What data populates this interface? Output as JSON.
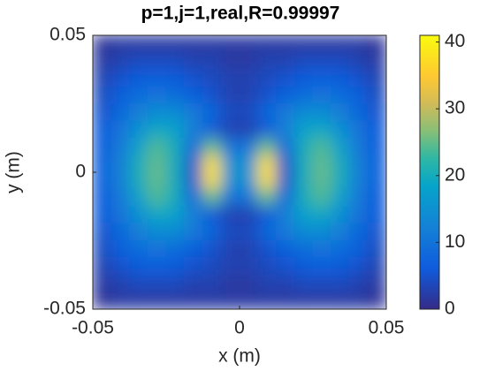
{
  "chart_data": {
    "type": "heatmap",
    "title": "p=1,j=1,real,R=0.99997",
    "x_label": "x (m)",
    "y_label": "y (m)",
    "xlim": [
      -0.05,
      0.05
    ],
    "ylim": [
      -0.05,
      0.05
    ],
    "xticks": [
      -0.05,
      0,
      0.05
    ],
    "yticks": [
      -0.05,
      0,
      0.05
    ],
    "colormap": "parula",
    "clim": [
      0,
      41
    ],
    "cticks": [
      0,
      10,
      20,
      30,
      40
    ],
    "z": [
      [
        1,
        2,
        2,
        2,
        2,
        2,
        2,
        2,
        2,
        2,
        2,
        2,
        2,
        2,
        2,
        1
      ],
      [
        2,
        3,
        4,
        4,
        4,
        3,
        3,
        2,
        2,
        3,
        3,
        4,
        4,
        4,
        3,
        2
      ],
      [
        3,
        5,
        6,
        7,
        6,
        5,
        4,
        3,
        3,
        4,
        5,
        6,
        7,
        6,
        5,
        3
      ],
      [
        4,
        7,
        9,
        10,
        9,
        7,
        5,
        3,
        3,
        5,
        7,
        9,
        10,
        9,
        7,
        4
      ],
      [
        5,
        8,
        12,
        14,
        14,
        11,
        8,
        4,
        4,
        8,
        11,
        14,
        14,
        12,
        8,
        5
      ],
      [
        6,
        10,
        15,
        19,
        18,
        12,
        6,
        3,
        3,
        6,
        12,
        18,
        19,
        15,
        10,
        6
      ],
      [
        6,
        11,
        18,
        24,
        20,
        8,
        25,
        10,
        10,
        25,
        8,
        20,
        24,
        18,
        11,
        6
      ],
      [
        7,
        12,
        20,
        25,
        20,
        5,
        38,
        15,
        15,
        38,
        5,
        20,
        25,
        20,
        12,
        7
      ],
      [
        7,
        12,
        20,
        25,
        20,
        5,
        38,
        15,
        15,
        38,
        5,
        20,
        25,
        20,
        12,
        7
      ],
      [
        6,
        11,
        18,
        24,
        20,
        8,
        25,
        10,
        10,
        25,
        8,
        20,
        24,
        18,
        11,
        6
      ],
      [
        6,
        10,
        15,
        19,
        18,
        12,
        6,
        3,
        3,
        6,
        12,
        18,
        19,
        15,
        10,
        6
      ],
      [
        5,
        8,
        12,
        14,
        14,
        11,
        8,
        4,
        4,
        8,
        11,
        14,
        14,
        12,
        8,
        5
      ],
      [
        4,
        7,
        9,
        10,
        9,
        7,
        5,
        3,
        3,
        5,
        7,
        9,
        10,
        9,
        7,
        4
      ],
      [
        3,
        5,
        6,
        7,
        6,
        5,
        4,
        3,
        3,
        4,
        5,
        6,
        7,
        6,
        5,
        3
      ],
      [
        2,
        3,
        4,
        4,
        4,
        3,
        3,
        2,
        2,
        3,
        3,
        4,
        4,
        4,
        3,
        2
      ],
      [
        1,
        2,
        2,
        2,
        2,
        2,
        2,
        2,
        2,
        2,
        2,
        2,
        2,
        2,
        2,
        1
      ]
    ]
  }
}
